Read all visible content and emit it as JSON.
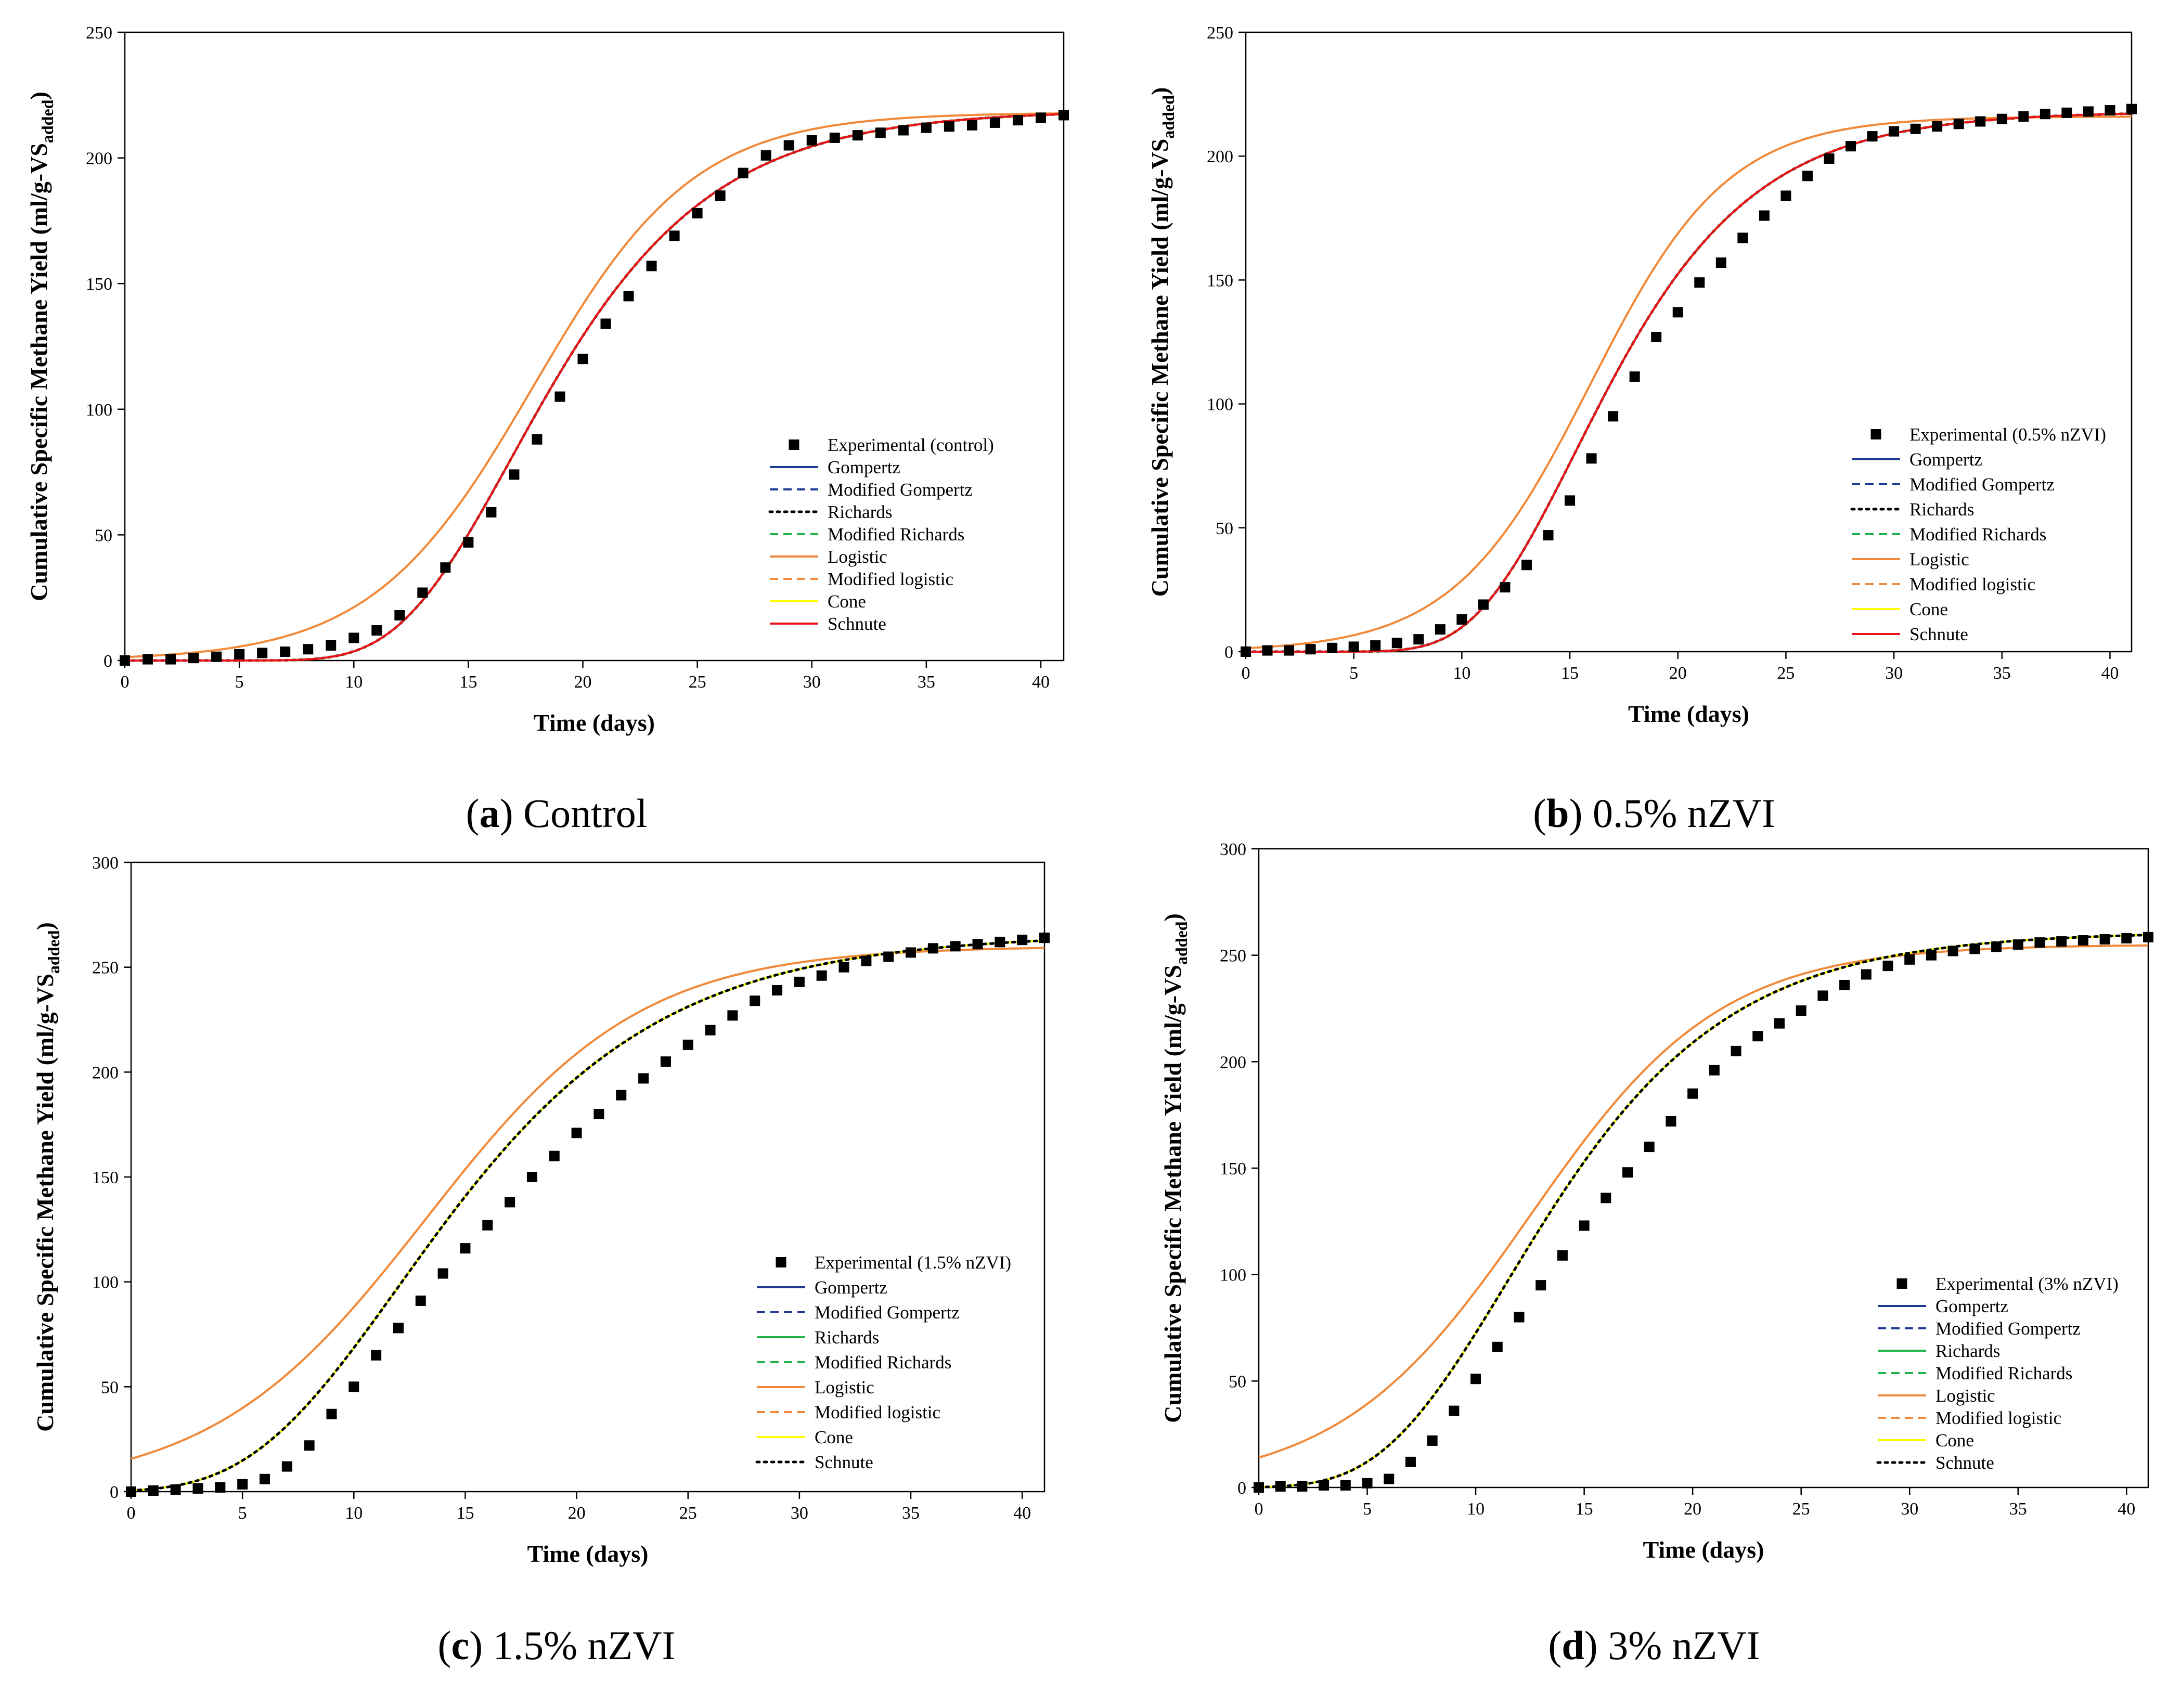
{
  "chart_data": [
    {
      "type": "line",
      "panel": "a",
      "caption_letter": "a",
      "caption_text": "Control",
      "xlabel": "Time (days)",
      "ylabel_main": "Cumulative Specific Methane Yield (ml/g-VS",
      "ylabel_sub": "added",
      "ylabel_close": ")",
      "xlim": [
        0,
        41
      ],
      "ylim": [
        0,
        250
      ],
      "xticks": [
        0,
        5,
        10,
        15,
        20,
        25,
        30,
        35,
        40
      ],
      "yticks": [
        0,
        50,
        100,
        150,
        200,
        250
      ],
      "experimental": {
        "name": "Experimental (control)",
        "x": [
          0,
          1,
          2,
          3,
          4,
          5,
          6,
          7,
          8,
          9,
          10,
          11,
          12,
          13,
          14,
          15,
          16,
          17,
          18,
          19,
          20,
          21,
          22,
          23,
          24,
          25,
          26,
          27,
          28,
          29,
          30,
          31,
          32,
          33,
          34,
          35,
          36,
          37,
          38,
          39,
          40,
          41
        ],
        "y": [
          0,
          0.5,
          0.5,
          1,
          1.5,
          2.5,
          3,
          3.5,
          4.5,
          6,
          9,
          12,
          18,
          27,
          37,
          47,
          59,
          74,
          88,
          105,
          120,
          134,
          145,
          157,
          169,
          178,
          185,
          194,
          201,
          205,
          207,
          208,
          209,
          210,
          211,
          212,
          212.5,
          213,
          214,
          215,
          216,
          217
        ]
      },
      "models": {
        "K": 219,
        "a": 10,
        "tc": 18.3,
        "lagK": 222,
        "lagR": 16.5,
        "lagL": 12,
        "logK": 218,
        "logR": 15.5,
        "logL": 10.8
      },
      "series": [
        {
          "name": "Gompertz",
          "color": "#1f3a93",
          "dash": "solid",
          "model": "gomp"
        },
        {
          "name": "Modified Gompertz",
          "color": "#1f3a93",
          "dash": "dashed",
          "model": "gomp"
        },
        {
          "name": "Richards",
          "color": "#000000",
          "dash": "dotted",
          "model": "gomp"
        },
        {
          "name": "Modified Richards",
          "color": "#21b24b",
          "dash": "dashed",
          "model": "gomp"
        },
        {
          "name": "Logistic",
          "color": "#f08a3a",
          "dash": "solid",
          "model": "log"
        },
        {
          "name": "Modified logistic",
          "color": "#f08a3a",
          "dash": "dashed",
          "model": "log"
        },
        {
          "name": "Cone",
          "color": "#ffff00",
          "dash": "solid",
          "model": "gomp"
        },
        {
          "name": "Schnute",
          "color": "#e8121b",
          "dash": "solid",
          "model": "gomp"
        }
      ]
    },
    {
      "type": "line",
      "panel": "b",
      "caption_letter": "b",
      "caption_text": "0.5% nZVI",
      "xlabel": "Time (days)",
      "ylabel_main": "Cumulative Specific Methane Yield (ml/g-VS",
      "ylabel_sub": "added",
      "ylabel_close": ")",
      "xlim": [
        0,
        41
      ],
      "ylim": [
        0,
        250
      ],
      "xticks": [
        0,
        5,
        10,
        15,
        20,
        25,
        30,
        35,
        40
      ],
      "yticks": [
        0,
        50,
        100,
        150,
        200,
        250
      ],
      "experimental": {
        "name": "Experimental (0.5% nZVI)",
        "x": [
          0,
          1,
          2,
          3,
          4,
          5,
          6,
          7,
          8,
          9,
          10,
          11,
          12,
          13,
          14,
          15,
          16,
          17,
          18,
          19,
          20,
          21,
          22,
          23,
          24,
          25,
          26,
          27,
          28,
          29,
          30,
          31,
          32,
          33,
          34,
          35,
          36,
          37,
          38,
          39,
          40,
          41
        ],
        "y": [
          0,
          0.5,
          0.5,
          1,
          1.5,
          2,
          2.5,
          3.5,
          5,
          9,
          13,
          19,
          26,
          35,
          47,
          61,
          78,
          95,
          111,
          127,
          137,
          149,
          157,
          167,
          176,
          184,
          192,
          199,
          204,
          208,
          210,
          211,
          212,
          213,
          214,
          215,
          216,
          217,
          217.5,
          218,
          218.5,
          219
        ]
      },
      "models": {
        "K": 218,
        "a": 17.5,
        "tc": 4,
        "lagK": 225,
        "lagR": 17.3,
        "lagL": 10.6,
        "logK": 216,
        "logR": 17,
        "logL": 9.6
      },
      "series": [
        {
          "name": "Gompertz",
          "color": "#1f3a93",
          "dash": "solid",
          "model": "gomp"
        },
        {
          "name": "Modified Gompertz",
          "color": "#1f3a93",
          "dash": "dashed",
          "model": "gomp"
        },
        {
          "name": "Richards",
          "color": "#000000",
          "dash": "dotted",
          "model": "gomp"
        },
        {
          "name": "Modified Richards",
          "color": "#21b24b",
          "dash": "dashed",
          "model": "gomp"
        },
        {
          "name": "Logistic",
          "color": "#f08a3a",
          "dash": "solid",
          "model": "log"
        },
        {
          "name": "Modified logistic",
          "color": "#f08a3a",
          "dash": "dashed",
          "model": "log"
        },
        {
          "name": "Cone",
          "color": "#ffff00",
          "dash": "solid",
          "model": "gomp"
        },
        {
          "name": "Schnute",
          "color": "#e8121b",
          "dash": "solid",
          "model": "gomp"
        }
      ]
    },
    {
      "type": "line",
      "panel": "c",
      "caption_letter": "c",
      "caption_text": "1.5% nZVI",
      "xlabel": "Time (days)",
      "ylabel_main": "Cumulative Specific Methane Yield (ml/g-VS",
      "ylabel_sub": "added",
      "ylabel_close": ")",
      "xlim": [
        0,
        41
      ],
      "ylim": [
        0,
        300
      ],
      "xticks": [
        0,
        5,
        10,
        15,
        20,
        25,
        30,
        35,
        40
      ],
      "yticks": [
        0,
        50,
        100,
        150,
        200,
        250,
        300
      ],
      "experimental": {
        "name": "Experimental (1.5% nZVI)",
        "x": [
          0,
          1,
          2,
          3,
          4,
          5,
          6,
          7,
          8,
          9,
          10,
          11,
          12,
          13,
          14,
          15,
          16,
          17,
          18,
          19,
          20,
          21,
          22,
          23,
          24,
          25,
          26,
          27,
          28,
          29,
          30,
          31,
          32,
          33,
          34,
          35,
          36,
          37,
          38,
          39,
          40,
          41
        ],
        "y": [
          0,
          0.5,
          1,
          1.5,
          2,
          3.5,
          6,
          12,
          22,
          37,
          50,
          65,
          78,
          91,
          104,
          116,
          127,
          138,
          150,
          160,
          171,
          180,
          189,
          197,
          205,
          213,
          220,
          227,
          234,
          239,
          243,
          246,
          250,
          253,
          255,
          257,
          259,
          260,
          261,
          262,
          263,
          264
        ]
      },
      "models": {
        "K": 266,
        "a": 11,
        "tc": 2,
        "lagK": 272,
        "lagR": 14.8,
        "lagL": 5.4,
        "logK": 260,
        "logR": 13.5,
        "logL": 3.6
      },
      "series": [
        {
          "name": "Gompertz",
          "color": "#1f3a93",
          "dash": "solid",
          "model": "gomp"
        },
        {
          "name": "Modified Gompertz",
          "color": "#1f3a93",
          "dash": "dashed",
          "model": "gomp"
        },
        {
          "name": "Richards",
          "color": "#21b24b",
          "dash": "solid",
          "model": "gomp"
        },
        {
          "name": "Modified Richards",
          "color": "#21b24b",
          "dash": "dashed",
          "model": "gomp"
        },
        {
          "name": "Logistic",
          "color": "#f08a3a",
          "dash": "solid",
          "model": "log"
        },
        {
          "name": "Modified logistic",
          "color": "#f08a3a",
          "dash": "dashed",
          "model": "log"
        },
        {
          "name": "Cone",
          "color": "#ffff00",
          "dash": "solid",
          "model": "gomp"
        },
        {
          "name": "Schnute",
          "color": "#000000",
          "dash": "dotted",
          "model": "gomp"
        }
      ]
    },
    {
      "type": "line",
      "panel": "d",
      "caption_letter": "d",
      "caption_text": "3% nZVI",
      "xlabel": "Time (days)",
      "ylabel_main": "Cumulative Specific Methane Yield (ml/g-VS",
      "ylabel_sub": "added",
      "ylabel_close": ")",
      "xlim": [
        0,
        41
      ],
      "ylim": [
        0,
        300
      ],
      "xticks": [
        0,
        5,
        10,
        15,
        20,
        25,
        30,
        35,
        40
      ],
      "yticks": [
        0,
        50,
        100,
        150,
        200,
        250,
        300
      ],
      "experimental": {
        "name": "Experimental (3% nZVI)",
        "x": [
          0,
          1,
          2,
          3,
          4,
          5,
          6,
          7,
          8,
          9,
          10,
          11,
          12,
          13,
          14,
          15,
          16,
          17,
          18,
          19,
          20,
          21,
          22,
          23,
          24,
          25,
          26,
          27,
          28,
          29,
          30,
          31,
          32,
          33,
          34,
          35,
          36,
          37,
          38,
          39,
          40,
          41
        ],
        "y": [
          0,
          0.5,
          0.5,
          1,
          1,
          2,
          4,
          12,
          22,
          36,
          51,
          66,
          80,
          95,
          109,
          123,
          136,
          148,
          160,
          172,
          185,
          196,
          205,
          212,
          218,
          224,
          231,
          236,
          241,
          245,
          248,
          250,
          252,
          253,
          254,
          255,
          256,
          256.5,
          257,
          257.5,
          258,
          258.5
        ]
      },
      "models": {
        "K": 261,
        "a": 13,
        "tc": 1,
        "lagK": 266,
        "lagR": 16.8,
        "lagL": 5.7,
        "logK": 255,
        "logR": 14.5,
        "logL": 3.7
      },
      "series": [
        {
          "name": "Gompertz",
          "color": "#1f3a93",
          "dash": "solid",
          "model": "gomp"
        },
        {
          "name": "Modified Gompertz",
          "color": "#1f3a93",
          "dash": "dashed",
          "model": "gomp"
        },
        {
          "name": "Richards",
          "color": "#21b24b",
          "dash": "solid",
          "model": "gomp"
        },
        {
          "name": "Modified Richards",
          "color": "#21b24b",
          "dash": "dashed",
          "model": "gomp"
        },
        {
          "name": "Logistic",
          "color": "#f08a3a",
          "dash": "solid",
          "model": "log"
        },
        {
          "name": "Modified logistic",
          "color": "#f08a3a",
          "dash": "dashed",
          "model": "log"
        },
        {
          "name": "Cone",
          "color": "#ffff00",
          "dash": "solid",
          "model": "gomp"
        },
        {
          "name": "Schnute",
          "color": "#000000",
          "dash": "dotted",
          "model": "gomp"
        }
      ]
    }
  ]
}
